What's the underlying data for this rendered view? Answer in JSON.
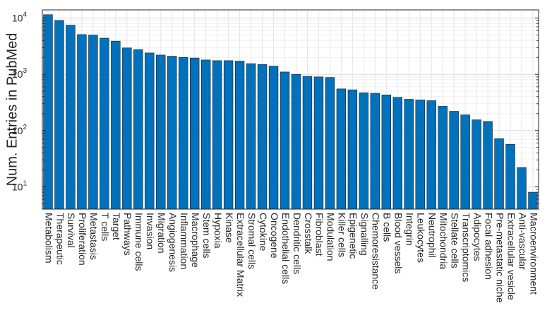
{
  "chart_data": {
    "type": "bar",
    "ylabel": "Num. Entries in PubMed",
    "yscale": "log",
    "ylim": [
      4,
      14000
    ],
    "yticks": [
      10,
      100,
      1000,
      10000
    ],
    "ytick_labels": [
      {
        "base": "10",
        "exp": "1"
      },
      {
        "base": "10",
        "exp": "2"
      },
      {
        "base": "10",
        "exp": "3"
      },
      {
        "base": "10",
        "exp": "4"
      }
    ],
    "grid": true,
    "bar_color": "#0072BD",
    "categories": [
      "Metabolism",
      "Therapeutic",
      "Survival",
      "Proliferation",
      "Metastasis",
      "T cells",
      "Target",
      "Pathways",
      "Immune cells",
      "Invasion",
      "Migration",
      "Angiogenesis",
      "Inflammation",
      "Macrophage",
      "Stem cells",
      "Hypoxia",
      "Kinase",
      "Extracellular Matrix",
      "Stromal cells",
      "Cytokine",
      "Oncogene",
      "Endothelial cells",
      "Dendritic cells",
      "Crosstalk",
      "Fibroblast",
      "Modulation",
      "Killer cells",
      "Epigenetic",
      "Signalling",
      "Chemoresistance",
      "B cells",
      "Blood vessels",
      "Integrin",
      "Leukocytes",
      "Neutrophil",
      "Mitochondria",
      "Stellate cells",
      "Transcriptomics",
      "Adipocytes",
      "Focal adhesion",
      "Pre-metastatic niche",
      "Extracellular vesicle",
      "Anti-vascular",
      "Macroenvironment"
    ],
    "values": [
      11500,
      9100,
      7500,
      5100,
      5000,
      4400,
      3900,
      2950,
      2750,
      2400,
      2200,
      2100,
      2000,
      1950,
      1800,
      1750,
      1750,
      1720,
      1550,
      1500,
      1400,
      1100,
      1000,
      920,
      900,
      880,
      550,
      530,
      470,
      460,
      430,
      390,
      360,
      350,
      340,
      270,
      220,
      190,
      155,
      145,
      72,
      57,
      22,
      8
    ]
  }
}
